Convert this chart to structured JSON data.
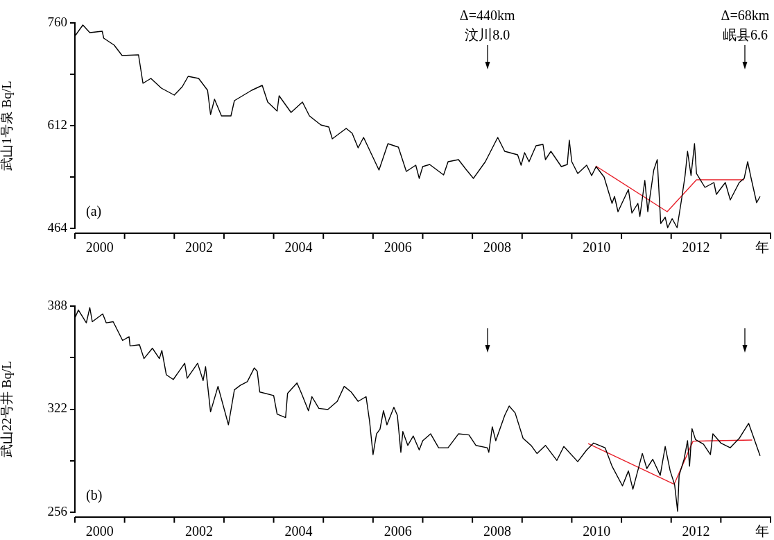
{
  "chart_data": [
    {
      "type": "line",
      "ylabel": "武山1号泉 Bq/L",
      "xlabel": "年",
      "xlim": [
        2000,
        2014
      ],
      "ylim": [
        464,
        760
      ],
      "xticks": [
        {
          "value": 2000,
          "label": null
        },
        {
          "value": 2000.5,
          "label": "2000"
        },
        {
          "value": 2001,
          "label": null
        },
        {
          "value": 2002,
          "label": null
        },
        {
          "value": 2002.5,
          "label": "2002"
        },
        {
          "value": 2003,
          "label": null
        },
        {
          "value": 2004,
          "label": null
        },
        {
          "value": 2004.5,
          "label": "2004"
        },
        {
          "value": 2005,
          "label": null
        },
        {
          "value": 2006,
          "label": null
        },
        {
          "value": 2006.5,
          "label": "2006"
        },
        {
          "value": 2007,
          "label": null
        },
        {
          "value": 2008,
          "label": null
        },
        {
          "value": 2008.5,
          "label": "2008"
        },
        {
          "value": 2009,
          "label": null
        },
        {
          "value": 2010,
          "label": null
        },
        {
          "value": 2010.5,
          "label": "2010"
        },
        {
          "value": 2011,
          "label": null
        },
        {
          "value": 2012,
          "label": null
        },
        {
          "value": 2012.5,
          "label": "2012"
        },
        {
          "value": 2013,
          "label": null
        },
        {
          "value": 2014,
          "label": null
        }
      ],
      "yticks": [
        760,
        {
          "value": 686,
          "label": null
        },
        612,
        {
          "value": 538,
          "label": null
        },
        464
      ],
      "series": [
        {
          "color": "#000000",
          "x": [
            2000.0,
            2000.16,
            2000.3,
            2000.55,
            2000.58,
            2000.79,
            2000.95,
            2001.28,
            2001.37,
            2001.53,
            2001.74,
            2002.0,
            2002.16,
            2002.28,
            2002.49,
            2002.67,
            2002.73,
            2002.81,
            2002.95,
            2003.14,
            2003.21,
            2003.56,
            2003.77,
            2003.88,
            2004.07,
            2004.11,
            2004.35,
            2004.58,
            2004.72,
            2004.95,
            2005.11,
            2005.18,
            2005.46,
            2005.58,
            2005.7,
            2005.81,
            2006.12,
            2006.3,
            2006.51,
            2006.67,
            2006.86,
            2006.93,
            2007.0,
            2007.14,
            2007.42,
            2007.51,
            2007.72,
            2007.86,
            2008.02,
            2008.26,
            2008.51,
            2008.65,
            2008.91,
            2008.98,
            2009.05,
            2009.14,
            2009.28,
            2009.42,
            2009.47,
            2009.58,
            2009.79,
            2009.91,
            2009.95,
            2010.0,
            2010.12,
            2010.3,
            2010.4,
            2010.49,
            2010.65,
            2010.81,
            2010.86,
            2010.93,
            2011.14,
            2011.21,
            2011.33,
            2011.37,
            2011.47,
            2011.53,
            2011.65,
            2011.72,
            2011.79,
            2011.88,
            2011.93,
            2012.02,
            2012.12,
            2012.21,
            2012.28,
            2012.33,
            2012.4,
            2012.47,
            2012.51,
            2012.68,
            2012.86,
            2012.91,
            2013.09,
            2013.19,
            2013.37,
            2013.47,
            2013.54,
            2013.61,
            2013.72,
            2013.79
          ],
          "values": [
            741,
            757,
            746,
            748,
            738,
            728,
            713,
            714,
            673,
            680,
            666,
            656,
            668,
            683,
            680,
            663,
            628,
            650,
            626,
            626,
            648,
            663,
            670,
            646,
            633,
            655,
            631,
            646,
            626,
            613,
            610,
            593,
            608,
            601,
            580,
            595,
            548,
            586,
            581,
            546,
            555,
            536,
            553,
            556,
            541,
            560,
            563,
            550,
            536,
            560,
            595,
            575,
            570,
            555,
            573,
            560,
            583,
            585,
            563,
            575,
            553,
            556,
            591,
            560,
            543,
            555,
            540,
            553,
            538,
            500,
            510,
            488,
            520,
            486,
            500,
            481,
            533,
            488,
            548,
            563,
            471,
            480,
            465,
            478,
            465,
            506,
            540,
            575,
            540,
            586,
            543,
            523,
            530,
            513,
            530,
            505,
            530,
            536,
            560,
            536,
            501,
            510
          ]
        },
        {
          "type": "line",
          "color": "#e8202a",
          "x": [
            2010.48,
            2011.92,
            2012.51,
            2013.47
          ],
          "values": [
            554,
            488,
            534,
            534
          ]
        }
      ],
      "annotations": [
        "(a)",
        "Δ=440km\n汶川8.0",
        "Δ=68km\n岷县6.6"
      ],
      "ref_lines": [
        {
          "axis": "x",
          "value": 2008.3,
          "label": null
        },
        {
          "axis": "x",
          "value": 2013.49,
          "label": null
        }
      ]
    },
    {
      "type": "line",
      "ylabel": "武山22号井 Bq/L",
      "xlabel": "年",
      "xlim": [
        2000,
        2014
      ],
      "ylim": [
        256,
        388
      ],
      "xticks": [
        {
          "value": 2000,
          "label": null
        },
        {
          "value": 2000.5,
          "label": "2000"
        },
        {
          "value": 2001,
          "label": null
        },
        {
          "value": 2002,
          "label": null
        },
        {
          "value": 2002.5,
          "label": "2002"
        },
        {
          "value": 2003,
          "label": null
        },
        {
          "value": 2004,
          "label": null
        },
        {
          "value": 2004.5,
          "label": "2004"
        },
        {
          "value": 2005,
          "label": null
        },
        {
          "value": 2006,
          "label": null
        },
        {
          "value": 2006.5,
          "label": "2006"
        },
        {
          "value": 2007,
          "label": null
        },
        {
          "value": 2008,
          "label": null
        },
        {
          "value": 2008.5,
          "label": "2008"
        },
        {
          "value": 2009,
          "label": null
        },
        {
          "value": 2010,
          "label": null
        },
        {
          "value": 2010.5,
          "label": "2010"
        },
        {
          "value": 2011,
          "label": null
        },
        {
          "value": 2012,
          "label": null
        },
        {
          "value": 2012.5,
          "label": "2012"
        },
        {
          "value": 2013,
          "label": null
        },
        {
          "value": 2014,
          "label": null
        }
      ],
      "yticks": [
        388,
        {
          "value": 355,
          "label": null
        },
        322,
        {
          "value": 289,
          "label": null
        },
        256
      ],
      "series": [
        {
          "color": "#000000",
          "x": [
            2000.0,
            2000.07,
            2000.23,
            2000.3,
            2000.35,
            2000.56,
            2000.63,
            2000.77,
            2000.96,
            2001.09,
            2001.11,
            2001.3,
            2001.39,
            2001.56,
            2001.7,
            2001.75,
            2001.84,
            2001.98,
            2002.21,
            2002.26,
            2002.47,
            2002.58,
            2002.63,
            2002.73,
            2002.88,
            2003.09,
            2003.21,
            2003.33,
            2003.47,
            2003.61,
            2003.67,
            2003.72,
            2004.0,
            2004.07,
            2004.24,
            2004.28,
            2004.47,
            2004.56,
            2004.7,
            2004.77,
            2004.91,
            2005.09,
            2005.28,
            2005.42,
            2005.56,
            2005.7,
            2005.86,
            2005.93,
            2006.0,
            2006.07,
            2006.14,
            2006.21,
            2006.28,
            2006.42,
            2006.49,
            2006.56,
            2006.6,
            2006.7,
            2006.81,
            2006.93,
            2007.0,
            2007.16,
            2007.32,
            2007.51,
            2007.72,
            2007.93,
            2008.07,
            2008.3,
            2008.33,
            2008.4,
            2008.47,
            2008.65,
            2008.74,
            2008.86,
            2009.02,
            2009.18,
            2009.3,
            2009.47,
            2009.7,
            2009.84,
            2010.12,
            2010.3,
            2010.44,
            2010.67,
            2010.81,
            2011.02,
            2011.14,
            2011.23,
            2011.42,
            2011.51,
            2011.63,
            2011.78,
            2011.88,
            2011.98,
            2012.07,
            2012.13,
            2012.16,
            2012.26,
            2012.33,
            2012.37,
            2012.42,
            2012.49,
            2012.65,
            2012.79,
            2012.84,
            2013.0,
            2013.19,
            2013.37,
            2013.56,
            2013.65,
            2013.79
          ],
          "values": [
            380.3,
            385.5,
            377.3,
            387,
            378,
            383,
            377.3,
            378,
            366,
            368.4,
            362.5,
            363.2,
            354.4,
            361,
            354.4,
            359.6,
            344,
            341,
            351.4,
            341.8,
            351.4,
            340.3,
            349.2,
            320.3,
            336.6,
            312,
            334.4,
            337.3,
            339.6,
            348.4,
            346.2,
            333,
            330.7,
            318.8,
            316.6,
            332.1,
            338.8,
            332.1,
            321,
            330,
            322.5,
            321.8,
            327,
            336.6,
            333,
            327,
            330,
            314.4,
            292.9,
            306.2,
            309.2,
            321,
            312,
            323.2,
            318,
            294.4,
            307.7,
            298.8,
            304.8,
            295.9,
            301.8,
            306.2,
            297.3,
            297.3,
            306.2,
            305.5,
            298.8,
            297.3,
            294.4,
            310.7,
            301.8,
            318,
            324,
            319.6,
            303.3,
            298.8,
            293.6,
            298.8,
            289.2,
            298.1,
            288.4,
            295.9,
            300.3,
            297.3,
            285.5,
            272.9,
            282.5,
            270.7,
            293.6,
            284,
            289.9,
            279.6,
            298.1,
            282.5,
            273.6,
            256.6,
            279.6,
            289.9,
            301.8,
            285.5,
            309.5,
            302.5,
            299.6,
            292.9,
            306.2,
            300.3,
            297.3,
            303.3,
            312.9,
            304.8,
            292.1
          ]
        },
        {
          "type": "line",
          "color": "#e8202a",
          "x": [
            2010.33,
            2012.06,
            2012.44,
            2013.63
          ],
          "values": [
            299.9,
            273.9,
            301.5,
            302.2
          ]
        }
      ],
      "annotations": [
        "(b)"
      ],
      "ref_lines": [
        {
          "axis": "x",
          "value": 2008.3,
          "label": null
        },
        {
          "axis": "x",
          "value": 2013.49,
          "label": null
        }
      ]
    }
  ]
}
